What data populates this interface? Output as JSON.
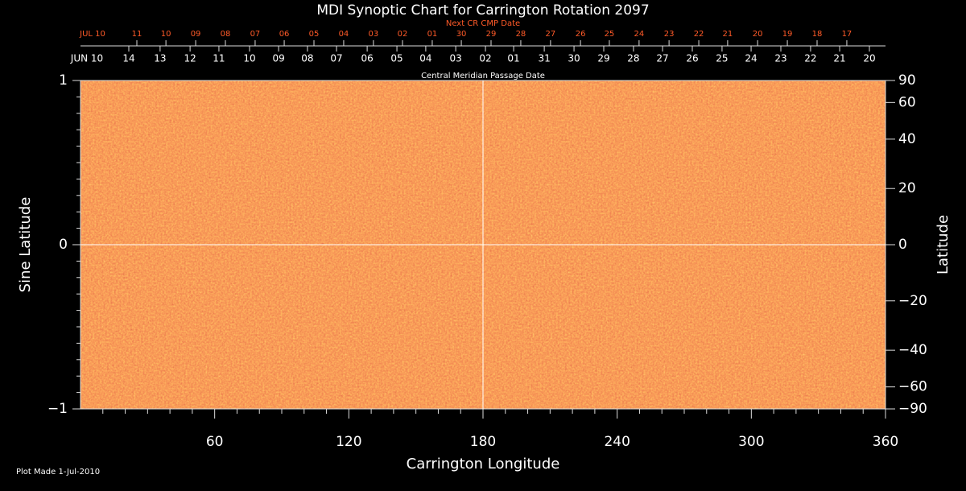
{
  "chart_data": {
    "type": "synoptic-map",
    "title": "MDI Synoptic Chart for Carrington Rotation 2097",
    "xlabel": "Carrington Longitude",
    "ylabel": "Sine Latitude",
    "y2label": "Latitude",
    "xlim": [
      0,
      360
    ],
    "xticks": [
      60,
      120,
      180,
      240,
      300,
      360
    ],
    "ylim": [
      -1,
      1
    ],
    "yticks": [
      {
        "value": -1,
        "label": "−1"
      },
      0,
      1
    ],
    "y2lim": [
      -90,
      90
    ],
    "y2scale": "sine",
    "y2ticks": [
      {
        "value": -90,
        "label": "−90"
      },
      {
        "value": -60,
        "label": "−60"
      },
      {
        "value": -40,
        "label": "−40"
      },
      {
        "value": -20,
        "label": "−20"
      },
      0,
      20,
      40,
      60,
      90
    ],
    "reference_lines": {
      "x": [
        180
      ],
      "y": [
        0
      ]
    },
    "top_axes": [
      {
        "label": "Next CR CMP Date",
        "start_label": "JUL 10",
        "color": "#ff5a28",
        "ticks": [
          {
            "value": 25.2,
            "label": "11"
          },
          {
            "value": 38.2,
            "label": "10"
          },
          {
            "value": 51.5,
            "label": "09"
          },
          {
            "value": 64.8,
            "label": "08"
          },
          {
            "value": 78.1,
            "label": "07"
          },
          {
            "value": 91.1,
            "label": "06"
          },
          {
            "value": 104.4,
            "label": "05"
          },
          {
            "value": 117.7,
            "label": "04"
          },
          {
            "value": 131,
            "label": "03"
          },
          {
            "value": 144,
            "label": "02"
          },
          {
            "value": 157.3,
            "label": "01"
          },
          {
            "value": 170.3,
            "label": "30"
          },
          {
            "value": 183.6,
            "label": "29"
          },
          {
            "value": 196.9,
            "label": "28"
          },
          {
            "value": 210.2,
            "label": "27"
          },
          {
            "value": 223.6,
            "label": "26"
          },
          {
            "value": 236.5,
            "label": "25"
          },
          {
            "value": 249.8,
            "label": "24"
          },
          {
            "value": 263.2,
            "label": "23"
          },
          {
            "value": 276.5,
            "label": "22"
          },
          {
            "value": 289.4,
            "label": "21"
          },
          {
            "value": 302.8,
            "label": "20"
          },
          {
            "value": 316.1,
            "label": "19"
          },
          {
            "value": 329.4,
            "label": "18"
          },
          {
            "value": 342.7,
            "label": "17"
          }
        ]
      },
      {
        "label": "Central Meridian Passage Date",
        "start_label": "JUN 10",
        "color": "#ffffff",
        "ticks": [
          {
            "value": 21.6,
            "label": "14"
          },
          {
            "value": 35.6,
            "label": "13"
          },
          {
            "value": 49,
            "label": "12"
          },
          {
            "value": 61.9,
            "label": "11"
          },
          {
            "value": 75.6,
            "label": "10"
          },
          {
            "value": 88.6,
            "label": "09"
          },
          {
            "value": 101.5,
            "label": "08"
          },
          {
            "value": 114.5,
            "label": "07"
          },
          {
            "value": 128.2,
            "label": "06"
          },
          {
            "value": 141.5,
            "label": "05"
          },
          {
            "value": 154.4,
            "label": "04"
          },
          {
            "value": 167.8,
            "label": "03"
          },
          {
            "value": 181.1,
            "label": "02"
          },
          {
            "value": 193.7,
            "label": "01"
          },
          {
            "value": 207.4,
            "label": "31"
          },
          {
            "value": 220.7,
            "label": "30"
          },
          {
            "value": 234,
            "label": "29"
          },
          {
            "value": 247.3,
            "label": "28"
          },
          {
            "value": 260.3,
            "label": "27"
          },
          {
            "value": 273.6,
            "label": "26"
          },
          {
            "value": 286.9,
            "label": "25"
          },
          {
            "value": 299.9,
            "label": "24"
          },
          {
            "value": 313.2,
            "label": "23"
          },
          {
            "value": 326.5,
            "label": "22"
          },
          {
            "value": 339.5,
            "label": "21"
          },
          {
            "value": 352.8,
            "label": "20"
          }
        ]
      }
    ],
    "footnote": "Plot Made  1-Jul-2010"
  }
}
